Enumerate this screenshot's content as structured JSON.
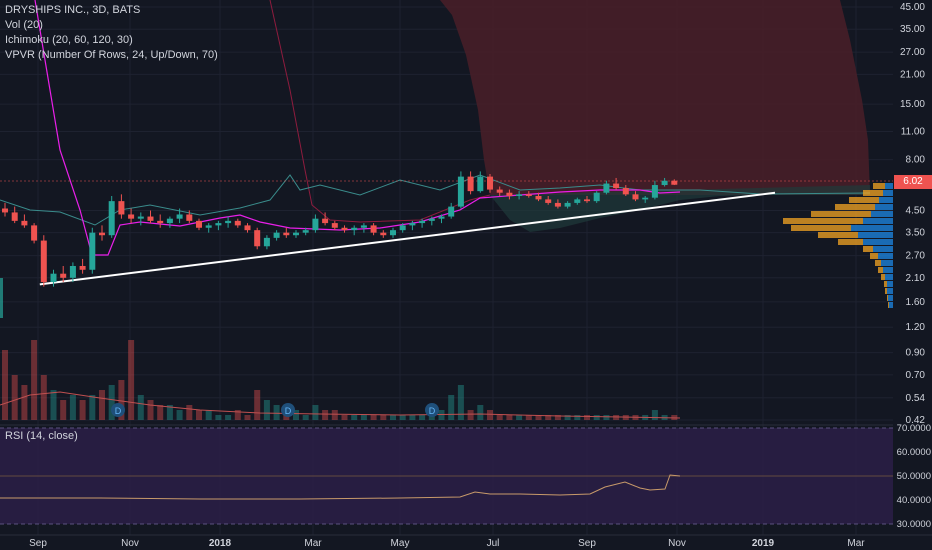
{
  "legend": {
    "symbol": "DRYSHIPS INC., 3D, BATS",
    "vol": "Vol (20)",
    "ichimoku": "Ichimoku (20, 60, 120, 30)",
    "vpvr": "VPVR (Number Of Rows, 24, Up/Down, 70)",
    "rsi": "RSI (14, close)"
  },
  "last_price": "6.02",
  "dividend_marker": "D",
  "colors": {
    "background": "#131722",
    "up": "#26a69a",
    "down": "#ef5350",
    "cloud": "#4a1f28",
    "ma": "#e91fe9",
    "kijun": "#8e1c3e",
    "rsi_band": "#2a1e45",
    "rsi_line": "#c89a6a",
    "trendline": "#ffffff",
    "vpvr_up": "#1e88e5",
    "vpvr_down": "#f5a623"
  },
  "chart_data": [
    {
      "type": "candlestick",
      "title": "DRYSHIPS INC., 3D, BATS",
      "y_scale": "log",
      "y_ticks": [
        "45.00",
        "35.00",
        "27.00",
        "21.00",
        "15.00",
        "11.00",
        "8.00",
        "6.02",
        "4.50",
        "3.50",
        "2.70",
        "2.10",
        "1.60",
        "1.20",
        "0.90",
        "0.70",
        "0.54",
        "0.42"
      ],
      "x_ticks": [
        "Sep",
        "Nov",
        "2018",
        "Mar",
        "May",
        "Jul",
        "Sep",
        "Nov",
        "2019",
        "Mar"
      ],
      "candles": [
        {
          "t": 0,
          "o": 4.6,
          "h": 4.9,
          "l": 4.2,
          "c": 4.4
        },
        {
          "t": 1,
          "o": 4.4,
          "h": 4.7,
          "l": 3.9,
          "c": 4.0
        },
        {
          "t": 2,
          "o": 4.0,
          "h": 4.3,
          "l": 3.7,
          "c": 3.8
        },
        {
          "t": 3,
          "o": 3.8,
          "h": 3.9,
          "l": 3.1,
          "c": 3.2
        },
        {
          "t": 4,
          "o": 3.2,
          "h": 3.4,
          "l": 1.9,
          "c": 2.0
        },
        {
          "t": 5,
          "o": 2.0,
          "h": 2.3,
          "l": 1.9,
          "c": 2.2
        },
        {
          "t": 6,
          "o": 2.2,
          "h": 2.4,
          "l": 2.0,
          "c": 2.1
        },
        {
          "t": 7,
          "o": 2.1,
          "h": 2.5,
          "l": 2.0,
          "c": 2.4
        },
        {
          "t": 8,
          "o": 2.4,
          "h": 2.6,
          "l": 2.2,
          "c": 2.3
        },
        {
          "t": 9,
          "o": 2.3,
          "h": 3.7,
          "l": 2.2,
          "c": 3.5
        },
        {
          "t": 10,
          "o": 3.5,
          "h": 3.8,
          "l": 3.2,
          "c": 3.4
        },
        {
          "t": 11,
          "o": 3.4,
          "h": 5.3,
          "l": 3.3,
          "c": 5.0
        },
        {
          "t": 12,
          "o": 5.0,
          "h": 5.4,
          "l": 4.1,
          "c": 4.3
        },
        {
          "t": 13,
          "o": 4.3,
          "h": 4.6,
          "l": 3.9,
          "c": 4.1
        },
        {
          "t": 14,
          "o": 4.1,
          "h": 4.4,
          "l": 3.8,
          "c": 4.2
        },
        {
          "t": 15,
          "o": 4.2,
          "h": 4.5,
          "l": 3.9,
          "c": 4.0
        },
        {
          "t": 16,
          "o": 4.0,
          "h": 4.3,
          "l": 3.7,
          "c": 3.9
        },
        {
          "t": 17,
          "o": 3.9,
          "h": 4.2,
          "l": 3.7,
          "c": 4.1
        },
        {
          "t": 18,
          "o": 4.1,
          "h": 4.6,
          "l": 3.9,
          "c": 4.3
        },
        {
          "t": 19,
          "o": 4.3,
          "h": 4.5,
          "l": 3.9,
          "c": 4.0
        },
        {
          "t": 20,
          "o": 4.0,
          "h": 4.1,
          "l": 3.6,
          "c": 3.7
        },
        {
          "t": 21,
          "o": 3.7,
          "h": 3.9,
          "l": 3.5,
          "c": 3.8
        },
        {
          "t": 22,
          "o": 3.8,
          "h": 4.0,
          "l": 3.6,
          "c": 3.9
        },
        {
          "t": 23,
          "o": 3.9,
          "h": 4.2,
          "l": 3.7,
          "c": 4.0
        },
        {
          "t": 24,
          "o": 4.0,
          "h": 4.1,
          "l": 3.7,
          "c": 3.8
        },
        {
          "t": 25,
          "o": 3.8,
          "h": 3.9,
          "l": 3.5,
          "c": 3.6
        },
        {
          "t": 26,
          "o": 3.6,
          "h": 3.7,
          "l": 2.9,
          "c": 3.0
        },
        {
          "t": 27,
          "o": 3.0,
          "h": 3.4,
          "l": 2.9,
          "c": 3.3
        },
        {
          "t": 28,
          "o": 3.3,
          "h": 3.6,
          "l": 3.2,
          "c": 3.5
        },
        {
          "t": 29,
          "o": 3.5,
          "h": 3.7,
          "l": 3.3,
          "c": 3.4
        },
        {
          "t": 30,
          "o": 3.4,
          "h": 3.6,
          "l": 3.3,
          "c": 3.5
        },
        {
          "t": 31,
          "o": 3.5,
          "h": 3.7,
          "l": 3.4,
          "c": 3.6
        },
        {
          "t": 32,
          "o": 3.6,
          "h": 4.3,
          "l": 3.5,
          "c": 4.1
        },
        {
          "t": 33,
          "o": 4.1,
          "h": 4.4,
          "l": 3.8,
          "c": 3.9
        },
        {
          "t": 34,
          "o": 3.9,
          "h": 4.0,
          "l": 3.6,
          "c": 3.7
        },
        {
          "t": 35,
          "o": 3.7,
          "h": 3.8,
          "l": 3.5,
          "c": 3.6
        },
        {
          "t": 36,
          "o": 3.6,
          "h": 3.8,
          "l": 3.4,
          "c": 3.7
        },
        {
          "t": 37,
          "o": 3.7,
          "h": 3.9,
          "l": 3.5,
          "c": 3.8
        },
        {
          "t": 38,
          "o": 3.8,
          "h": 3.9,
          "l": 3.4,
          "c": 3.5
        },
        {
          "t": 39,
          "o": 3.5,
          "h": 3.6,
          "l": 3.3,
          "c": 3.4
        },
        {
          "t": 40,
          "o": 3.4,
          "h": 3.7,
          "l": 3.3,
          "c": 3.6
        },
        {
          "t": 41,
          "o": 3.6,
          "h": 3.9,
          "l": 3.5,
          "c": 3.8
        },
        {
          "t": 42,
          "o": 3.8,
          "h": 4.0,
          "l": 3.6,
          "c": 3.9
        },
        {
          "t": 43,
          "o": 3.9,
          "h": 4.1,
          "l": 3.7,
          "c": 4.0
        },
        {
          "t": 44,
          "o": 4.0,
          "h": 4.2,
          "l": 3.8,
          "c": 4.1
        },
        {
          "t": 45,
          "o": 4.1,
          "h": 4.3,
          "l": 3.9,
          "c": 4.2
        },
        {
          "t": 46,
          "o": 4.2,
          "h": 4.9,
          "l": 4.1,
          "c": 4.7
        },
        {
          "t": 47,
          "o": 4.7,
          "h": 7.0,
          "l": 4.6,
          "c": 6.6
        },
        {
          "t": 48,
          "o": 6.6,
          "h": 7.0,
          "l": 5.4,
          "c": 5.6
        },
        {
          "t": 49,
          "o": 5.6,
          "h": 7.0,
          "l": 5.5,
          "c": 6.6
        },
        {
          "t": 50,
          "o": 6.6,
          "h": 6.8,
          "l": 5.5,
          "c": 5.7
        },
        {
          "t": 51,
          "o": 5.7,
          "h": 5.9,
          "l": 5.3,
          "c": 5.5
        },
        {
          "t": 52,
          "o": 5.5,
          "h": 5.7,
          "l": 5.1,
          "c": 5.3
        },
        {
          "t": 53,
          "o": 5.3,
          "h": 5.6,
          "l": 5.1,
          "c": 5.4
        },
        {
          "t": 54,
          "o": 5.4,
          "h": 5.6,
          "l": 5.2,
          "c": 5.3
        },
        {
          "t": 55,
          "o": 5.3,
          "h": 5.5,
          "l": 5.0,
          "c": 5.1
        },
        {
          "t": 56,
          "o": 5.1,
          "h": 5.3,
          "l": 4.8,
          "c": 4.9
        },
        {
          "t": 57,
          "o": 4.9,
          "h": 5.1,
          "l": 4.6,
          "c": 4.7
        },
        {
          "t": 58,
          "o": 4.7,
          "h": 5.0,
          "l": 4.6,
          "c": 4.9
        },
        {
          "t": 59,
          "o": 4.9,
          "h": 5.2,
          "l": 4.8,
          "c": 5.1
        },
        {
          "t": 60,
          "o": 5.1,
          "h": 5.3,
          "l": 4.9,
          "c": 5.0
        },
        {
          "t": 61,
          "o": 5.0,
          "h": 5.6,
          "l": 4.9,
          "c": 5.5
        },
        {
          "t": 62,
          "o": 5.5,
          "h": 6.3,
          "l": 5.4,
          "c": 6.1
        },
        {
          "t": 63,
          "o": 6.1,
          "h": 6.5,
          "l": 5.7,
          "c": 5.8
        },
        {
          "t": 64,
          "o": 5.8,
          "h": 6.0,
          "l": 5.3,
          "c": 5.4
        },
        {
          "t": 65,
          "o": 5.4,
          "h": 5.6,
          "l": 5.0,
          "c": 5.1
        },
        {
          "t": 66,
          "o": 5.1,
          "h": 5.3,
          "l": 4.9,
          "c": 5.2
        },
        {
          "t": 67,
          "o": 5.2,
          "h": 6.3,
          "l": 5.1,
          "c": 6.0
        },
        {
          "t": 68,
          "o": 6.0,
          "h": 6.5,
          "l": 5.9,
          "c": 6.3
        },
        {
          "t": 69,
          "o": 6.3,
          "h": 6.4,
          "l": 6.0,
          "c": 6.02
        }
      ],
      "trendline": [
        {
          "from_candle": 4,
          "price": 1.95
        },
        {
          "to_candle": 90,
          "price": 5.5
        }
      ],
      "volume": [
        14,
        9,
        7,
        16,
        9,
        6,
        4,
        5,
        4,
        5,
        6,
        7,
        8,
        16,
        5,
        4,
        3,
        3,
        2,
        3,
        2,
        2,
        1,
        1,
        2,
        1,
        6,
        4,
        3,
        2,
        2,
        1,
        3,
        2,
        2,
        1,
        1,
        1,
        1,
        1,
        1,
        1,
        1,
        1,
        2,
        2,
        5,
        7,
        2,
        3,
        2,
        1,
        1,
        1,
        1,
        1,
        1,
        1,
        1,
        1,
        1,
        1,
        1,
        1,
        1,
        1,
        1,
        2,
        1,
        1
      ],
      "rsi": {
        "levels": [
          70,
          30
        ],
        "tick_labels": [
          "70.0000",
          "60.0000",
          "50.0000",
          "40.0000",
          "30.0000"
        ]
      }
    }
  ]
}
